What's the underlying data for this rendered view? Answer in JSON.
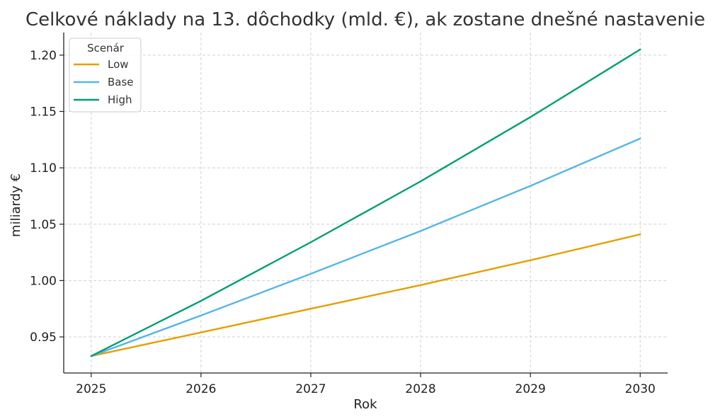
{
  "chart_data": {
    "type": "line",
    "title": "Celkové náklady na 13. dôchodky (mld. €), ak zostane dnešné nastavenie",
    "xlabel": "Rok",
    "ylabel": "miliardy €",
    "x": [
      2025,
      2026,
      2027,
      2028,
      2029,
      2030
    ],
    "x_ticks": [
      "2025",
      "2026",
      "2027",
      "2028",
      "2029",
      "2030"
    ],
    "y_ticks": [
      "0.95",
      "1.00",
      "1.05",
      "1.10",
      "1.15",
      "1.20"
    ],
    "xlim": [
      2024.75,
      2030.25
    ],
    "ylim": [
      0.918,
      1.22
    ],
    "grid": true,
    "legend": {
      "title": "Scenár",
      "placement": "top-left"
    },
    "series": [
      {
        "name": "Low",
        "color": "#E69F00",
        "values": [
          0.933,
          0.954,
          0.975,
          0.996,
          1.018,
          1.041
        ]
      },
      {
        "name": "Base",
        "color": "#56B4E9",
        "values": [
          0.933,
          0.969,
          1.006,
          1.044,
          1.084,
          1.126
        ]
      },
      {
        "name": "High",
        "color": "#009E73",
        "values": [
          0.933,
          0.982,
          1.034,
          1.088,
          1.145,
          1.205
        ]
      }
    ]
  }
}
